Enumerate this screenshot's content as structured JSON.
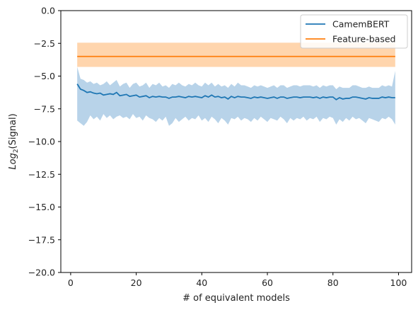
{
  "chart_data": {
    "type": "line",
    "title": "",
    "xlabel": "# of equivalent models",
    "ylabel_main": "Log",
    "ylabel_sub": "2",
    "ylabel_rest": "(Signal)",
    "xlim": [
      -3,
      104
    ],
    "ylim": [
      -20,
      0
    ],
    "xticks": [
      0,
      20,
      40,
      60,
      80,
      100
    ],
    "xtick_labels": [
      "0",
      "20",
      "40",
      "60",
      "80",
      "100"
    ],
    "yticks": [
      0,
      -2.5,
      -5,
      -7.5,
      -10,
      -12.5,
      -15,
      -17.5,
      -20
    ],
    "ytick_labels": [
      "0.0",
      "−2.5",
      "−5.0",
      "−7.5",
      "−10.0",
      "−12.5",
      "−15.0",
      "−17.5",
      "−20.0"
    ],
    "grid": false,
    "legend_position": "top-right",
    "series": [
      {
        "name": "CamemBERT",
        "color": "#1f77b4",
        "band_color": "#b8d3e9",
        "x_start": 2,
        "x_step": 1,
        "mean": [
          -5.6,
          -6.0,
          -6.1,
          -6.25,
          -6.2,
          -6.3,
          -6.35,
          -6.3,
          -6.45,
          -6.4,
          -6.35,
          -6.4,
          -6.25,
          -6.5,
          -6.45,
          -6.4,
          -6.55,
          -6.5,
          -6.45,
          -6.6,
          -6.55,
          -6.5,
          -6.65,
          -6.55,
          -6.6,
          -6.55,
          -6.6,
          -6.6,
          -6.7,
          -6.6,
          -6.6,
          -6.55,
          -6.6,
          -6.65,
          -6.55,
          -6.6,
          -6.55,
          -6.6,
          -6.65,
          -6.5,
          -6.6,
          -6.45,
          -6.6,
          -6.55,
          -6.65,
          -6.6,
          -6.75,
          -6.55,
          -6.65,
          -6.55,
          -6.6,
          -6.6,
          -6.65,
          -6.7,
          -6.6,
          -6.65,
          -6.6,
          -6.65,
          -6.7,
          -6.65,
          -6.6,
          -6.7,
          -6.6,
          -6.6,
          -6.7,
          -6.65,
          -6.6,
          -6.6,
          -6.65,
          -6.6,
          -6.6,
          -6.6,
          -6.65,
          -6.6,
          -6.7,
          -6.6,
          -6.65,
          -6.6,
          -6.6,
          -6.8,
          -6.65,
          -6.75,
          -6.7,
          -6.7,
          -6.6,
          -6.6,
          -6.65,
          -6.7,
          -6.75,
          -6.65,
          -6.7,
          -6.7,
          -6.7,
          -6.6,
          -6.65,
          -6.6,
          -6.65,
          -6.65
        ],
        "upper": [
          -4.3,
          -5.2,
          -5.3,
          -5.5,
          -5.4,
          -5.6,
          -5.5,
          -5.7,
          -5.6,
          -5.4,
          -5.7,
          -5.5,
          -5.3,
          -5.8,
          -5.6,
          -5.5,
          -5.9,
          -5.6,
          -5.5,
          -5.8,
          -5.7,
          -5.5,
          -5.9,
          -5.6,
          -5.7,
          -5.5,
          -5.8,
          -5.7,
          -5.9,
          -5.6,
          -5.7,
          -5.5,
          -5.7,
          -5.8,
          -5.6,
          -5.7,
          -5.5,
          -5.7,
          -5.8,
          -5.5,
          -5.7,
          -5.5,
          -5.8,
          -5.6,
          -5.8,
          -5.7,
          -5.9,
          -5.6,
          -5.8,
          -5.5,
          -5.7,
          -5.7,
          -5.8,
          -5.9,
          -5.7,
          -5.8,
          -5.7,
          -5.8,
          -5.9,
          -5.8,
          -5.7,
          -5.9,
          -5.7,
          -5.7,
          -5.9,
          -5.8,
          -5.7,
          -5.7,
          -5.8,
          -5.7,
          -5.7,
          -5.7,
          -5.8,
          -5.7,
          -5.9,
          -5.7,
          -5.8,
          -5.7,
          -5.7,
          -6.0,
          -5.8,
          -5.9,
          -5.9,
          -5.9,
          -5.7,
          -5.7,
          -5.8,
          -5.9,
          -5.9,
          -5.8,
          -5.9,
          -5.9,
          -5.9,
          -5.7,
          -5.8,
          -5.7,
          -5.8,
          -4.6
        ],
        "lower": [
          -8.4,
          -8.6,
          -8.8,
          -8.5,
          -8.0,
          -8.3,
          -8.1,
          -8.4,
          -7.9,
          -8.2,
          -8.0,
          -8.3,
          -8.1,
          -8.0,
          -8.2,
          -8.1,
          -8.3,
          -7.9,
          -8.2,
          -8.1,
          -8.4,
          -8.0,
          -8.2,
          -8.3,
          -8.5,
          -8.2,
          -8.4,
          -8.1,
          -8.8,
          -8.6,
          -8.2,
          -8.5,
          -8.3,
          -8.1,
          -8.4,
          -8.2,
          -8.3,
          -8.0,
          -8.4,
          -8.2,
          -8.5,
          -8.1,
          -8.3,
          -8.6,
          -8.2,
          -8.4,
          -8.7,
          -8.2,
          -8.3,
          -8.1,
          -8.4,
          -8.2,
          -8.3,
          -8.5,
          -8.2,
          -8.4,
          -8.1,
          -8.3,
          -8.5,
          -8.2,
          -8.3,
          -8.4,
          -8.1,
          -8.3,
          -8.6,
          -8.2,
          -8.4,
          -8.2,
          -8.3,
          -8.1,
          -8.4,
          -8.2,
          -8.3,
          -8.1,
          -8.5,
          -8.2,
          -8.3,
          -8.1,
          -8.2,
          -8.7,
          -8.3,
          -8.5,
          -8.2,
          -8.4,
          -8.1,
          -8.3,
          -8.2,
          -8.4,
          -8.6,
          -8.2,
          -8.3,
          -8.4,
          -8.5,
          -8.2,
          -8.3,
          -8.1,
          -8.3,
          -8.7
        ]
      },
      {
        "name": "Feature-based",
        "color": "#ff7f0e",
        "band_color": "#ffd5ad",
        "x_start": 2,
        "x_end": 99,
        "mean_value": -3.5,
        "upper_value": -2.45,
        "lower_value": -4.3
      }
    ]
  }
}
